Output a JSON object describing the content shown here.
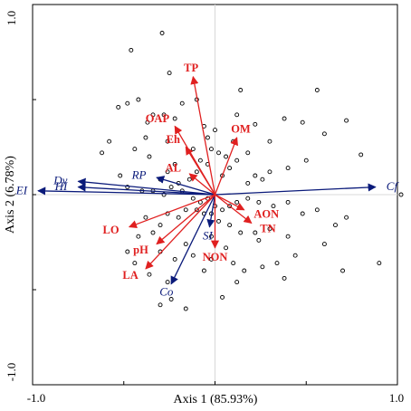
{
  "chart_data": {
    "type": "scatter",
    "subtype": "RDA biplot",
    "xlabel": "Axis 1 (85.93%)",
    "ylabel": "Axis 2 (6.78%)",
    "xlim": [
      -1.0,
      1.0
    ],
    "ylim": [
      -1.0,
      1.0
    ],
    "x_tick_labels": [
      {
        "value": -1.0,
        "label": "-1.0"
      },
      {
        "value": 1.0,
        "label": "1.0"
      }
    ],
    "y_tick_labels": [
      {
        "value": 1.0,
        "label": "1.0"
      },
      {
        "value": -1.0,
        "label": "-1.0"
      }
    ],
    "grid": false,
    "zero_lines": true,
    "colors": {
      "environment": "#e02020",
      "species": "#0a1a7a",
      "points": "#000000"
    },
    "environment_vectors": [
      {
        "label": "TP",
        "x": -0.12,
        "y": 0.62
      },
      {
        "label": "OAP",
        "x": -0.22,
        "y": 0.36
      },
      {
        "label": "Eh",
        "x": -0.16,
        "y": 0.25
      },
      {
        "label": "OM",
        "x": 0.12,
        "y": 0.3
      },
      {
        "label": "AL",
        "x": -0.14,
        "y": 0.11
      },
      {
        "label": "AON",
        "x": 0.16,
        "y": -0.08
      },
      {
        "label": "TN",
        "x": 0.2,
        "y": -0.15
      },
      {
        "label": "NON",
        "x": 0.0,
        "y": -0.28
      },
      {
        "label": "LO",
        "x": -0.47,
        "y": -0.17
      },
      {
        "label": "pH",
        "x": -0.32,
        "y": -0.26
      },
      {
        "label": "LA",
        "x": -0.38,
        "y": -0.39
      }
    ],
    "species_vectors": [
      {
        "label": "Cf",
        "x": 0.88,
        "y": 0.04
      },
      {
        "label": "Dy",
        "x": -0.75,
        "y": 0.07
      },
      {
        "label": "HI",
        "x": -0.75,
        "y": 0.04
      },
      {
        "label": "EI",
        "x": -0.97,
        "y": 0.02
      },
      {
        "label": "RP",
        "x": -0.32,
        "y": 0.09
      },
      {
        "label": "SI",
        "x": -0.03,
        "y": -0.17
      },
      {
        "label": "Co",
        "x": -0.24,
        "y": -0.47
      }
    ],
    "sample_points": [
      [
        -0.29,
        0.85
      ],
      [
        -0.46,
        0.76
      ],
      [
        -0.25,
        0.64
      ],
      [
        -0.48,
        0.48
      ],
      [
        -0.53,
        0.46
      ],
      [
        -0.42,
        0.5
      ],
      [
        -0.37,
        0.38
      ],
      [
        -0.38,
        0.3
      ],
      [
        -0.34,
        0.42
      ],
      [
        -0.28,
        0.42
      ],
      [
        -0.22,
        0.4
      ],
      [
        -0.18,
        0.48
      ],
      [
        -0.1,
        0.5
      ],
      [
        -0.06,
        0.36
      ],
      [
        -0.04,
        0.3
      ],
      [
        -0.02,
        0.24
      ],
      [
        0.02,
        0.22
      ],
      [
        0.06,
        0.2
      ],
      [
        0.12,
        0.42
      ],
      [
        0.14,
        0.55
      ],
      [
        0.22,
        0.37
      ],
      [
        0.1,
        0.28
      ],
      [
        0.18,
        0.22
      ],
      [
        0.3,
        0.28
      ],
      [
        0.38,
        0.4
      ],
      [
        0.48,
        0.38
      ],
      [
        0.56,
        0.55
      ],
      [
        0.6,
        0.32
      ],
      [
        0.72,
        0.39
      ],
      [
        0.8,
        0.21
      ],
      [
        0.5,
        0.18
      ],
      [
        0.4,
        0.14
      ],
      [
        0.3,
        0.12
      ],
      [
        0.26,
        0.08
      ],
      [
        0.22,
        0.1
      ],
      [
        0.18,
        0.06
      ],
      [
        0.12,
        0.18
      ],
      [
        0.08,
        0.14
      ],
      [
        0.04,
        0.1
      ],
      [
        -0.04,
        0.16
      ],
      [
        -0.08,
        0.18
      ],
      [
        -0.1,
        0.12
      ],
      [
        -0.14,
        0.08
      ],
      [
        -0.2,
        0.06
      ],
      [
        -0.22,
        0.16
      ],
      [
        -0.26,
        0.12
      ],
      [
        -0.3,
        0.08
      ],
      [
        -0.36,
        0.2
      ],
      [
        -0.44,
        0.24
      ],
      [
        -0.58,
        0.28
      ],
      [
        -0.62,
        0.22
      ],
      [
        -0.52,
        0.1
      ],
      [
        -0.48,
        0.04
      ],
      [
        -0.4,
        0.02
      ],
      [
        -0.34,
        0.02
      ],
      [
        -0.28,
        0.0
      ],
      [
        -0.24,
        0.04
      ],
      [
        -0.18,
        0.02
      ],
      [
        -0.12,
        -0.02
      ],
      [
        -0.08,
        -0.04
      ],
      [
        -0.04,
        -0.02
      ],
      [
        0.0,
        -0.06
      ],
      [
        0.04,
        -0.08
      ],
      [
        0.08,
        -0.06
      ],
      [
        0.12,
        -0.04
      ],
      [
        0.18,
        -0.02
      ],
      [
        0.24,
        -0.04
      ],
      [
        0.32,
        -0.06
      ],
      [
        0.4,
        -0.04
      ],
      [
        0.48,
        -0.1
      ],
      [
        0.56,
        -0.08
      ],
      [
        0.66,
        -0.16
      ],
      [
        0.72,
        -0.12
      ],
      [
        0.6,
        -0.26
      ],
      [
        0.4,
        -0.22
      ],
      [
        0.3,
        -0.18
      ],
      [
        0.22,
        -0.2
      ],
      [
        0.14,
        -0.2
      ],
      [
        0.08,
        -0.16
      ],
      [
        0.02,
        -0.14
      ],
      [
        -0.02,
        -0.1
      ],
      [
        -0.06,
        -0.1
      ],
      [
        -0.1,
        -0.08
      ],
      [
        -0.16,
        -0.08
      ],
      [
        -0.2,
        -0.12
      ],
      [
        -0.26,
        -0.1
      ],
      [
        -0.3,
        -0.16
      ],
      [
        -0.34,
        -0.2
      ],
      [
        -0.38,
        -0.12
      ],
      [
        -0.42,
        -0.22
      ],
      [
        -0.48,
        -0.3
      ],
      [
        -0.3,
        -0.3
      ],
      [
        -0.22,
        -0.34
      ],
      [
        -0.16,
        -0.26
      ],
      [
        -0.12,
        -0.32
      ],
      [
        -0.06,
        -0.4
      ],
      [
        -0.02,
        -0.34
      ],
      [
        0.06,
        -0.28
      ],
      [
        0.1,
        -0.36
      ],
      [
        0.16,
        -0.4
      ],
      [
        0.26,
        -0.38
      ],
      [
        0.34,
        -0.36
      ],
      [
        0.44,
        -0.32
      ],
      [
        0.38,
        -0.44
      ],
      [
        0.12,
        -0.46
      ],
      [
        0.04,
        -0.54
      ],
      [
        -0.16,
        -0.6
      ],
      [
        -0.26,
        -0.46
      ],
      [
        -0.36,
        -0.42
      ],
      [
        -0.44,
        -0.36
      ],
      [
        -0.24,
        -0.55
      ],
      [
        -0.3,
        -0.58
      ],
      [
        -0.02,
        -0.22
      ],
      [
        0.9,
        -0.36
      ],
      [
        1.02,
        0.0
      ],
      [
        0.7,
        -0.4
      ],
      [
        0.24,
        -0.24
      ],
      [
        -0.12,
        0.24
      ],
      [
        0.0,
        0.34
      ],
      [
        -0.26,
        0.28
      ]
    ]
  }
}
